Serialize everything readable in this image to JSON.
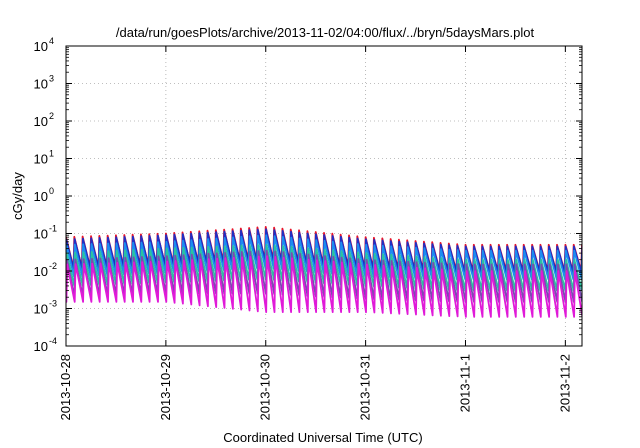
{
  "chart_data": {
    "type": "line",
    "title": "/data/run/goesPlots/archive/2013-11-02/04:00/flux/../bryn/5daysMars.plot",
    "xlabel": "Coordinated Universal Time (UTC)",
    "ylabel": "cGy/day",
    "yscale": "log",
    "ylim": [
      0.0001,
      10000
    ],
    "xlim": [
      "2013-10-28 00:00",
      "2013-11-02 04:00"
    ],
    "grid": true,
    "legend": "none",
    "y_ticks": [
      {
        "value": 0.0001,
        "base": "10",
        "exp": "-4"
      },
      {
        "value": 0.001,
        "base": "10",
        "exp": "-3"
      },
      {
        "value": 0.01,
        "base": "10",
        "exp": "-2"
      },
      {
        "value": 0.1,
        "base": "10",
        "exp": "-1"
      },
      {
        "value": 1,
        "base": "10",
        "exp": "0"
      },
      {
        "value": 10,
        "base": "10",
        "exp": "1"
      },
      {
        "value": 100,
        "base": "10",
        "exp": "2"
      },
      {
        "value": 1000,
        "base": "10",
        "exp": "3"
      },
      {
        "value": 10000,
        "base": "10",
        "exp": "4"
      }
    ],
    "x_ticks": [
      {
        "value": "2013-10-28",
        "label": "2013-10-28"
      },
      {
        "value": "2013-10-29",
        "label": "2013-10-29"
      },
      {
        "value": "2013-10-30",
        "label": "2013-10-30"
      },
      {
        "value": "2013-10-31",
        "label": "2013-10-31"
      },
      {
        "value": "2013-11-01",
        "label": "2013-11-1"
      },
      {
        "value": "2013-11-02",
        "label": "2013-11-2"
      }
    ],
    "sawtooth_period_hours": 2,
    "series": [
      {
        "color": "#e8142a",
        "peaks": [
          {
            "x": "2013-10-28",
            "y": 0.08
          },
          {
            "x": "2013-10-29",
            "y": 0.1
          },
          {
            "x": "2013-10-30",
            "y": 0.15
          },
          {
            "x": "2013-10-31",
            "y": 0.08
          },
          {
            "x": "2013-11-01",
            "y": 0.05
          },
          {
            "x": "2013-11-02",
            "y": 0.05
          },
          {
            "x": "2013-11-02 04:00",
            "y": 0.05
          }
        ],
        "troughs": [
          {
            "x": "2013-10-28",
            "y": 0.012
          },
          {
            "x": "2013-10-29",
            "y": 0.015
          },
          {
            "x": "2013-10-30",
            "y": 0.02
          },
          {
            "x": "2013-10-31",
            "y": 0.012
          },
          {
            "x": "2013-11-01",
            "y": 0.01
          },
          {
            "x": "2013-11-02",
            "y": 0.01
          },
          {
            "x": "2013-11-02 04:00",
            "y": 0.01
          }
        ]
      },
      {
        "color": "#1f2fc4",
        "peaks": [
          {
            "x": "2013-10-28",
            "y": 0.07
          },
          {
            "x": "2013-10-29",
            "y": 0.09
          },
          {
            "x": "2013-10-30",
            "y": 0.13
          },
          {
            "x": "2013-10-31",
            "y": 0.07
          },
          {
            "x": "2013-11-01",
            "y": 0.045
          },
          {
            "x": "2013-11-02",
            "y": 0.045
          },
          {
            "x": "2013-11-02 04:00",
            "y": 0.045
          }
        ],
        "troughs": [
          {
            "x": "2013-10-28",
            "y": 0.011
          },
          {
            "x": "2013-10-29",
            "y": 0.014
          },
          {
            "x": "2013-10-30",
            "y": 0.018
          },
          {
            "x": "2013-10-31",
            "y": 0.011
          },
          {
            "x": "2013-11-01",
            "y": 0.009
          },
          {
            "x": "2013-11-02",
            "y": 0.009
          },
          {
            "x": "2013-11-02 04:00",
            "y": 0.009
          }
        ]
      },
      {
        "color": "#1c8cf0",
        "peaks": [
          {
            "x": "2013-10-28",
            "y": 0.05
          },
          {
            "x": "2013-10-29",
            "y": 0.06
          },
          {
            "x": "2013-10-30",
            "y": 0.09
          },
          {
            "x": "2013-10-31",
            "y": 0.05
          },
          {
            "x": "2013-11-01",
            "y": 0.035
          },
          {
            "x": "2013-11-02",
            "y": 0.035
          },
          {
            "x": "2013-11-02 04:00",
            "y": 0.035
          }
        ],
        "troughs": [
          {
            "x": "2013-10-28",
            "y": 0.007
          },
          {
            "x": "2013-10-29",
            "y": 0.009
          },
          {
            "x": "2013-10-30",
            "y": 0.012
          },
          {
            "x": "2013-10-31",
            "y": 0.007
          },
          {
            "x": "2013-11-01",
            "y": 0.006
          },
          {
            "x": "2013-11-02",
            "y": 0.006
          },
          {
            "x": "2013-11-02 04:00",
            "y": 0.006
          }
        ]
      },
      {
        "color": "#2bc3a0",
        "peaks": [
          {
            "x": "2013-10-28",
            "y": 0.03
          },
          {
            "x": "2013-10-29",
            "y": 0.04
          },
          {
            "x": "2013-10-30",
            "y": 0.05
          },
          {
            "x": "2013-10-31",
            "y": 0.03
          },
          {
            "x": "2013-11-01",
            "y": 0.02
          },
          {
            "x": "2013-11-02",
            "y": 0.02
          },
          {
            "x": "2013-11-02 04:00",
            "y": 0.02
          }
        ],
        "troughs": [
          {
            "x": "2013-10-28",
            "y": 0.004
          },
          {
            "x": "2013-10-29",
            "y": 0.005
          },
          {
            "x": "2013-10-30",
            "y": 0.006
          },
          {
            "x": "2013-10-31",
            "y": 0.004
          },
          {
            "x": "2013-11-01",
            "y": 0.003
          },
          {
            "x": "2013-11-02",
            "y": 0.003
          },
          {
            "x": "2013-11-02 04:00",
            "y": 0.003
          }
        ]
      },
      {
        "color": "#7a4bb0",
        "peaks": [
          {
            "x": "2013-10-28",
            "y": 0.02
          },
          {
            "x": "2013-10-29",
            "y": 0.025
          },
          {
            "x": "2013-10-30",
            "y": 0.035
          },
          {
            "x": "2013-10-31",
            "y": 0.02
          },
          {
            "x": "2013-11-01",
            "y": 0.015
          },
          {
            "x": "2013-11-02",
            "y": 0.015
          },
          {
            "x": "2013-11-02 04:00",
            "y": 0.015
          }
        ],
        "troughs": [
          {
            "x": "2013-10-28",
            "y": 0.002
          },
          {
            "x": "2013-10-29",
            "y": 0.0025
          },
          {
            "x": "2013-10-30",
            "y": 0.0025
          },
          {
            "x": "2013-10-31",
            "y": 0.0018
          },
          {
            "x": "2013-11-01",
            "y": 0.0015
          },
          {
            "x": "2013-11-02",
            "y": 0.0015
          },
          {
            "x": "2013-11-02 04:00",
            "y": 0.0015
          }
        ]
      },
      {
        "color": "#e01ad8",
        "peaks": [
          {
            "x": "2013-10-28",
            "y": 0.015
          },
          {
            "x": "2013-10-29",
            "y": 0.018
          },
          {
            "x": "2013-10-30",
            "y": 0.025
          },
          {
            "x": "2013-10-31",
            "y": 0.015
          },
          {
            "x": "2013-11-01",
            "y": 0.01
          },
          {
            "x": "2013-11-02",
            "y": 0.01
          },
          {
            "x": "2013-11-02 04:00",
            "y": 0.01
          }
        ],
        "troughs": [
          {
            "x": "2013-10-28",
            "y": 0.0015
          },
          {
            "x": "2013-10-29",
            "y": 0.0015
          },
          {
            "x": "2013-10-30",
            "y": 0.0008
          },
          {
            "x": "2013-10-31",
            "y": 0.0008
          },
          {
            "x": "2013-11-01",
            "y": 0.0006
          },
          {
            "x": "2013-11-02",
            "y": 0.0006
          },
          {
            "x": "2013-11-02 04:00",
            "y": 0.0006
          }
        ]
      }
    ]
  }
}
